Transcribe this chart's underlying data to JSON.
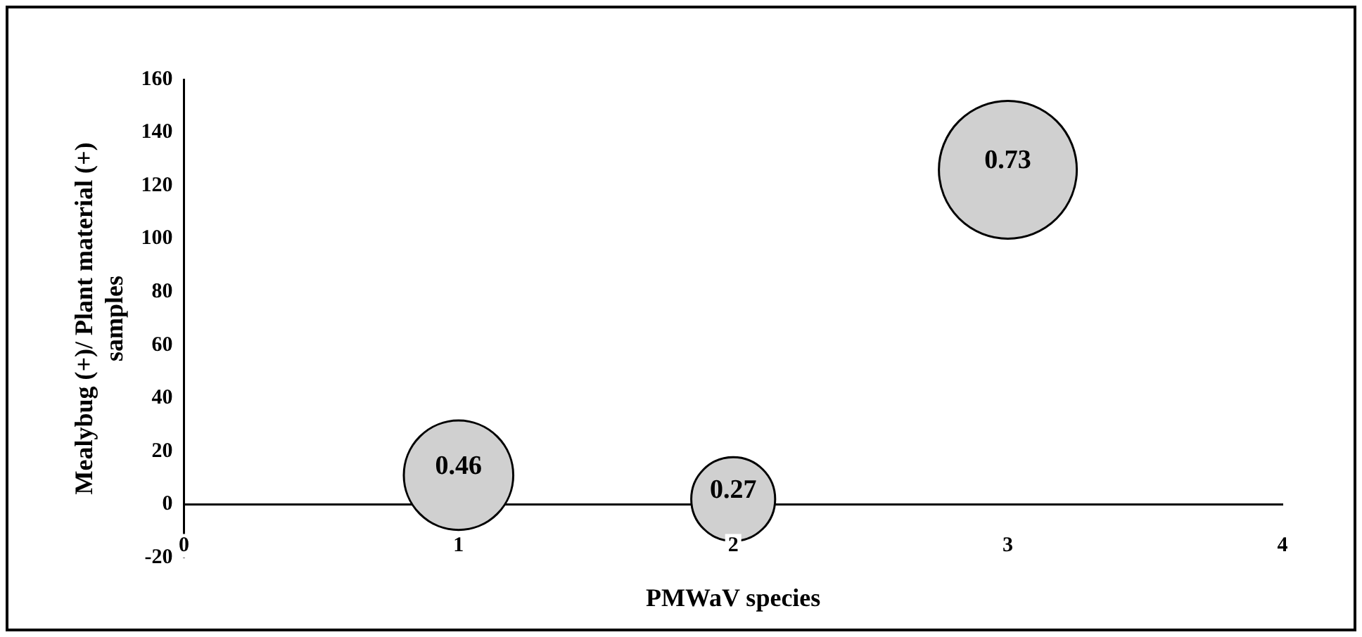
{
  "chart_data": {
    "type": "bubble",
    "xlabel": "PMWaV species",
    "ylabel": "Mealybug (+)/ Plant material (+) samples",
    "x": [
      1,
      2,
      3
    ],
    "values": [
      11,
      2,
      126
    ],
    "sizes": [
      0.63,
      0.37,
      1
    ],
    "color": "#d0d0d0",
    "annotations": [
      {
        "text": "0.46",
        "x": 1,
        "y": 11
      },
      {
        "text": "0.27",
        "x": 2,
        "y": 2
      },
      {
        "text": "0.73",
        "x": 3,
        "y": 126
      }
    ],
    "xlim": [
      0,
      4
    ],
    "xticks": [
      0,
      1,
      2,
      3,
      4
    ],
    "ylim": [
      -20,
      160
    ],
    "yticks": [
      -20,
      0,
      20,
      40,
      60,
      80,
      100,
      120,
      140,
      160
    ],
    "grid": false,
    "legend": false
  }
}
